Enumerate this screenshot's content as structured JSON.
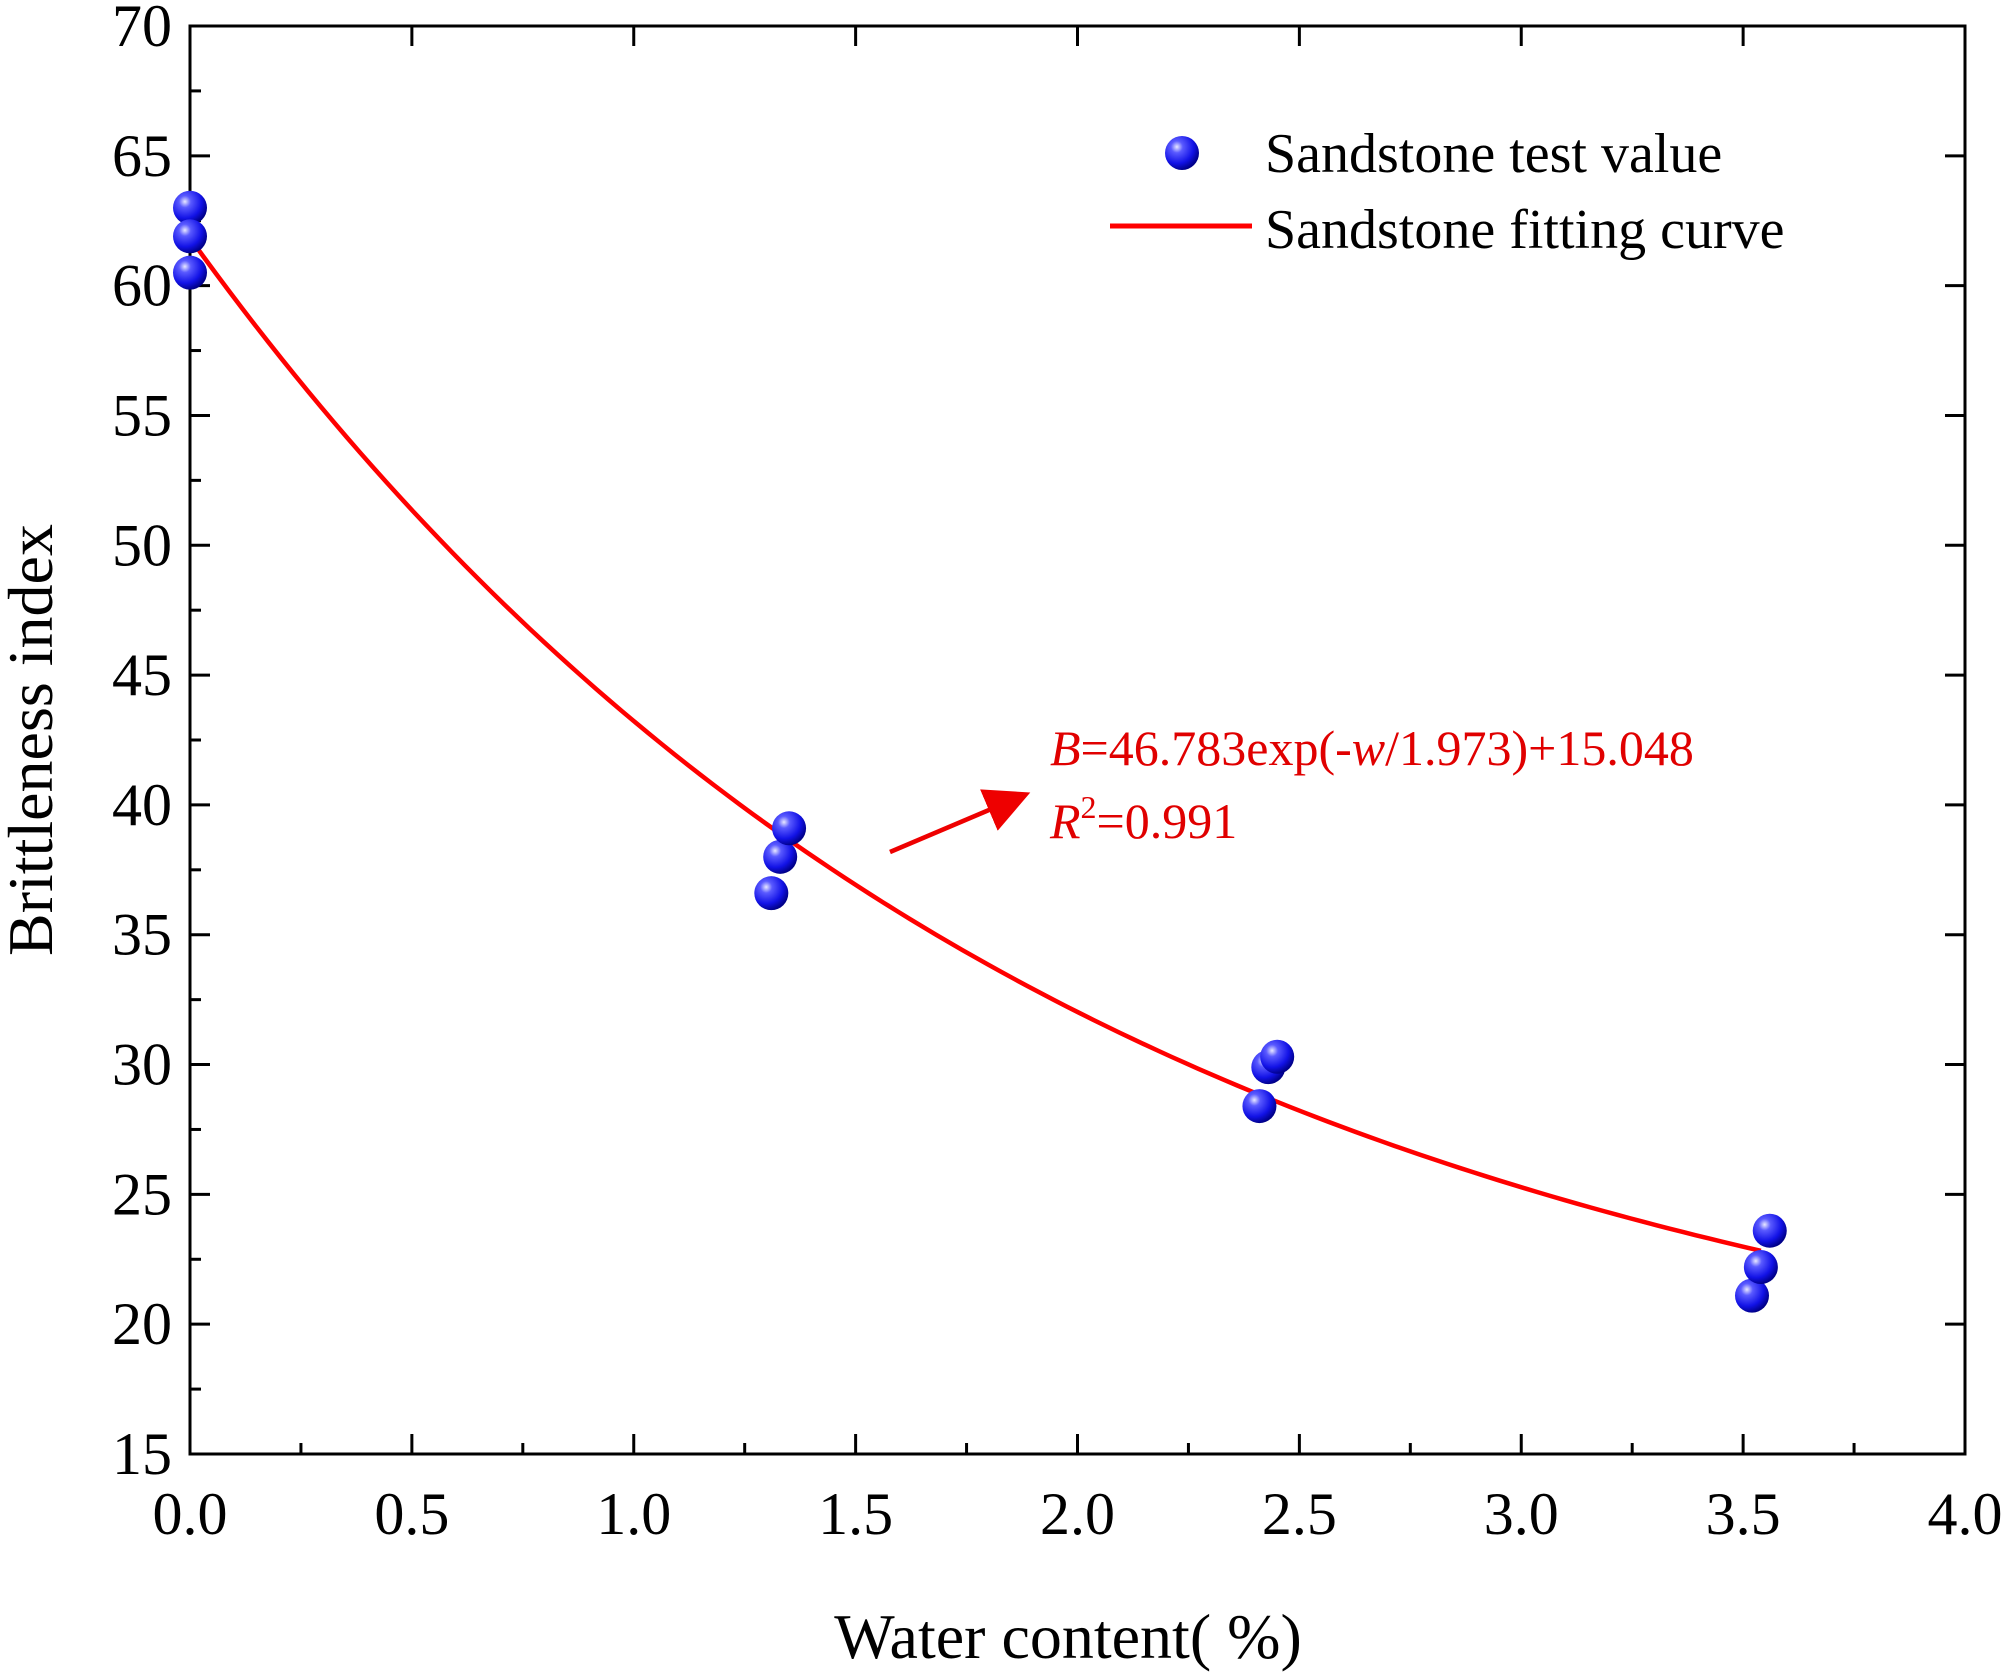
{
  "chart_data": {
    "type": "scatter",
    "title": "",
    "xlabel": "Water content(   %)",
    "ylabel": "Brittleness index",
    "xlim": [
      0.0,
      4.0
    ],
    "ylim": [
      15,
      70
    ],
    "xticks": [
      "0.0",
      "0.5",
      "1.0",
      "1.5",
      "2.0",
      "2.5",
      "3.0",
      "3.5",
      "4.0"
    ],
    "yticks": [
      "15",
      "20",
      "25",
      "30",
      "35",
      "40",
      "45",
      "50",
      "55",
      "60",
      "65",
      "70"
    ],
    "legend_position": "top-right",
    "series": [
      {
        "name": "Sandstone test value",
        "kind": "scatter",
        "color": "#1a1aff",
        "points": [
          {
            "x": 0.0,
            "y": 63.0
          },
          {
            "x": 0.0,
            "y": 61.9
          },
          {
            "x": 0.0,
            "y": 60.5
          },
          {
            "x": 1.31,
            "y": 36.6
          },
          {
            "x": 1.33,
            "y": 38.0
          },
          {
            "x": 1.35,
            "y": 39.1
          },
          {
            "x": 2.41,
            "y": 28.4
          },
          {
            "x": 2.43,
            "y": 29.9
          },
          {
            "x": 2.45,
            "y": 30.3
          },
          {
            "x": 3.52,
            "y": 21.1
          },
          {
            "x": 3.54,
            "y": 22.2
          },
          {
            "x": 3.56,
            "y": 23.6
          }
        ]
      },
      {
        "name": "Sandstone fitting curve",
        "kind": "line",
        "color": "#ff0000",
        "equation": {
          "a": 46.783,
          "t": 1.973,
          "c": 15.048
        },
        "x_range": [
          0.0,
          3.54
        ]
      }
    ],
    "annotation": {
      "eq_B": "B",
      "eq_mid": "=46.783exp(-",
      "eq_w": "w",
      "eq_end": "/1.973)+15.048",
      "r2_R": "R",
      "r2_sup": "2",
      "r2_value": "=0.991",
      "color": "#e00000"
    }
  }
}
